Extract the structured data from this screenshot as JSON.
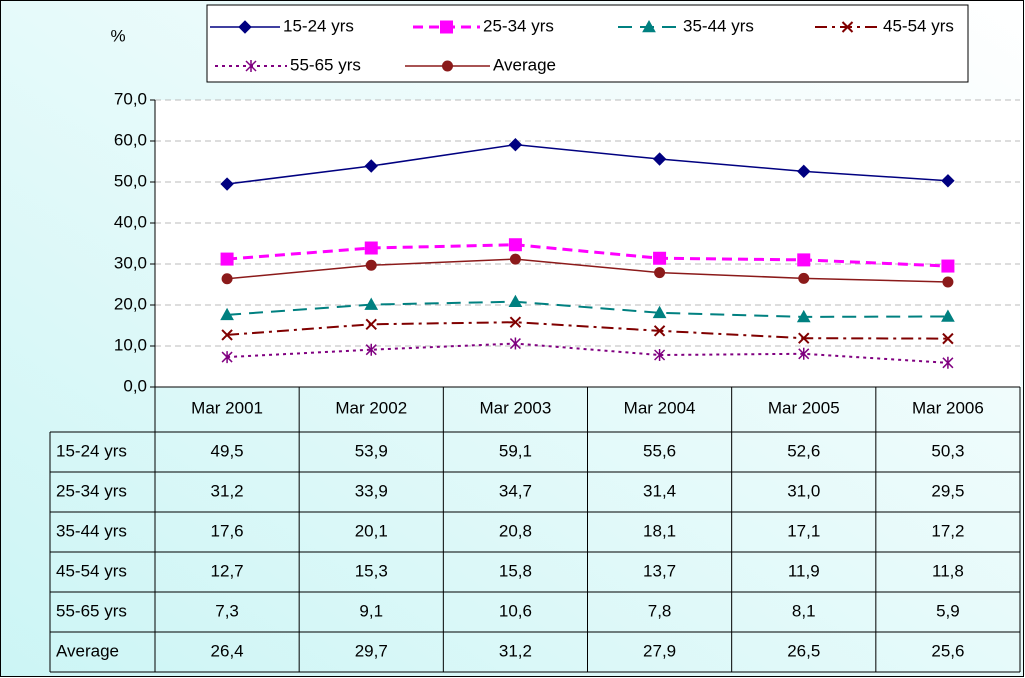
{
  "chart_data": {
    "type": "line",
    "y_label": "%",
    "categories": [
      "Mar 2001",
      "Mar 2002",
      "Mar 2003",
      "Mar 2004",
      "Mar 2005",
      "Mar 2006"
    ],
    "series": [
      {
        "name": "15-24 yrs",
        "color": "#000080",
        "values": [
          49.5,
          53.9,
          59.1,
          55.6,
          52.6,
          50.3
        ],
        "value_labels": [
          "49,5",
          "53,9",
          "59,1",
          "55,6",
          "52,6",
          "50,3"
        ]
      },
      {
        "name": "25-34 yrs",
        "color": "#ff00ff",
        "values": [
          31.2,
          33.9,
          34.7,
          31.4,
          31.0,
          29.5
        ],
        "value_labels": [
          "31,2",
          "33,9",
          "34,7",
          "31,4",
          "31,0",
          "29,5"
        ]
      },
      {
        "name": "35-44 yrs",
        "color": "#008080",
        "values": [
          17.6,
          20.1,
          20.8,
          18.1,
          17.1,
          17.2
        ],
        "value_labels": [
          "17,6",
          "20,1",
          "20,8",
          "18,1",
          "17,1",
          "17,2"
        ]
      },
      {
        "name": "45-54 yrs",
        "color": "#800000",
        "values": [
          12.7,
          15.3,
          15.8,
          13.7,
          11.9,
          11.8
        ],
        "value_labels": [
          "12,7",
          "15,3",
          "15,8",
          "13,7",
          "11,9",
          "11,8"
        ]
      },
      {
        "name": "55-65 yrs",
        "color": "#800080",
        "values": [
          7.3,
          9.1,
          10.6,
          7.8,
          8.1,
          5.9
        ],
        "value_labels": [
          "7,3",
          "9,1",
          "10,6",
          "7,8",
          "8,1",
          "5,9"
        ]
      },
      {
        "name": "Average",
        "color": "#8b1a1a",
        "values": [
          26.4,
          29.7,
          31.2,
          27.9,
          26.5,
          25.6
        ],
        "value_labels": [
          "26,4",
          "29,7",
          "31,2",
          "27,9",
          "26,5",
          "25,6"
        ]
      }
    ],
    "ylim": [
      0,
      70
    ],
    "yticks": [
      {
        "value": 0,
        "label": "0,0"
      },
      {
        "value": 10,
        "label": "10,0"
      },
      {
        "value": 20,
        "label": "20,0"
      },
      {
        "value": 30,
        "label": "30,0"
      },
      {
        "value": 40,
        "label": "40,0"
      },
      {
        "value": 50,
        "label": "50,0"
      },
      {
        "value": 60,
        "label": "60,0"
      },
      {
        "value": 70,
        "label": "70,0"
      }
    ],
    "grid": true,
    "legend": "top"
  }
}
